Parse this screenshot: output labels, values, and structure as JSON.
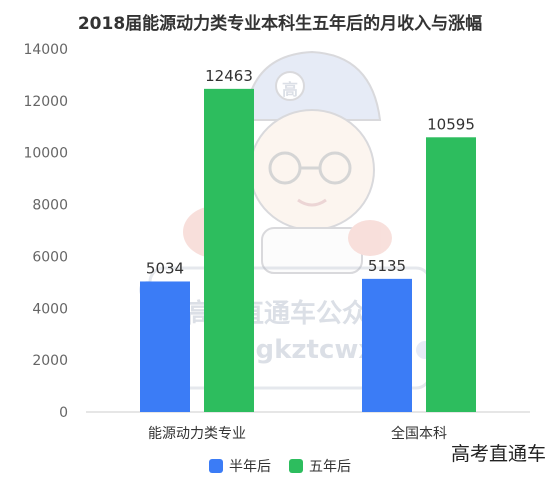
{
  "chart_data": {
    "type": "bar",
    "title": "2018届能源动力类专业本科生五年后的月收入与涨幅",
    "categories": [
      "能源动力类专业",
      "全国本科"
    ],
    "series": [
      {
        "name": "半年后",
        "color": "#3b7cf6",
        "values": [
          5034,
          5135
        ]
      },
      {
        "name": "五年后",
        "color": "#2dbd5e",
        "values": [
          12463,
          10595
        ]
      }
    ],
    "ylim": [
      0,
      14000
    ],
    "yticks": [
      0,
      2000,
      4000,
      6000,
      8000,
      10000,
      12000,
      14000
    ],
    "grid": false,
    "legend_position": "bottom-center"
  },
  "watermark": {
    "line1": "高考直通车公众号",
    "line2": "ID: gkztcwx",
    "badge": "高",
    "corner": "高考直通车"
  }
}
